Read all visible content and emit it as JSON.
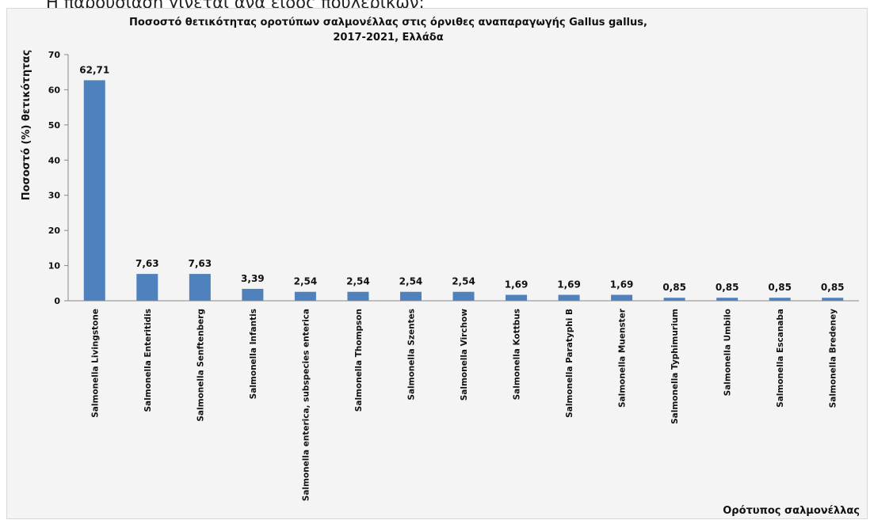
{
  "header_fragment": "Η παρουσίαση γίνεται ανά είδος πουλερικών:",
  "chart_data": {
    "type": "bar",
    "title_line1": "Ποσοστό θετικότητας οροτύπων σαλμονέλλας στις όρνιθες αναπαραγωγής Gallus gallus,",
    "title_line2": "2017-2021, Ελλάδα",
    "xlabel": "Ορότυπος σαλμονέλλας",
    "ylabel": "Ποσοστό (%)  θετικότητας",
    "ylim": [
      0,
      70
    ],
    "yticks": [
      "0",
      "10",
      "20",
      "30",
      "40",
      "50",
      "60",
      "70"
    ],
    "categories": [
      "Salmonella Livingstone",
      "Salmonella Enteritidis",
      "Salmonella Senftenberg",
      "Salmonella Infantis",
      "Salmonella enterica, subspecies enterica",
      "Salmonella Thompson",
      "Salmonella Szentes",
      "Salmonella Virchow",
      "Salmonella Kottbus",
      "Salmonella Paratyphi B",
      "Salmonella Muenster",
      "Salmonella Typhimurium",
      "Salmonella Umbilo",
      "Salmonella Escanaba",
      "Salmonella Bredeney"
    ],
    "values": [
      62.71,
      7.63,
      7.63,
      3.39,
      2.54,
      2.54,
      2.54,
      2.54,
      1.69,
      1.69,
      1.69,
      0.85,
      0.85,
      0.85,
      0.85
    ],
    "value_labels": [
      "62,71",
      "7,63",
      "7,63",
      "3,39",
      "2,54",
      "2,54",
      "2,54",
      "2,54",
      "1,69",
      "1,69",
      "1,69",
      "0,85",
      "0,85",
      "0,85",
      "0,85"
    ],
    "bar_color": "#4f81bd",
    "grid": false,
    "legend": "none"
  }
}
